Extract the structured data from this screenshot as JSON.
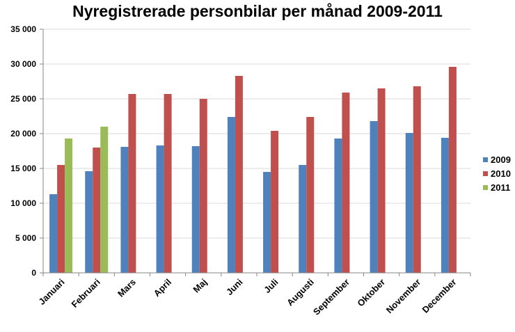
{
  "chart_data": {
    "type": "bar",
    "title": "Nyregistrerade personbilar per månad 2009-2011",
    "xlabel": "",
    "ylabel": "",
    "ylim": [
      0,
      35000
    ],
    "yticks": [
      0,
      5000,
      10000,
      15000,
      20000,
      25000,
      30000,
      35000
    ],
    "ytick_labels": [
      "0",
      "5 000",
      "10 000",
      "15 000",
      "20 000",
      "25 000",
      "30 000",
      "35 000"
    ],
    "grid": true,
    "legend": "right",
    "categories": [
      "Januari",
      "Februari",
      "Mars",
      "April",
      "Maj",
      "Juni",
      "Juli",
      "Augusti",
      "September",
      "Oktober",
      "November",
      "December"
    ],
    "series": [
      {
        "name": "2009",
        "color": "#4f81bd",
        "values": [
          11300,
          14600,
          18100,
          18300,
          18200,
          22400,
          14500,
          15500,
          19300,
          21800,
          20100,
          19400
        ]
      },
      {
        "name": "2010",
        "color": "#c0504d",
        "values": [
          15500,
          18000,
          25700,
          25700,
          25000,
          28300,
          20400,
          22400,
          25900,
          26500,
          26800,
          29600
        ]
      },
      {
        "name": "2011",
        "color": "#9bbb59",
        "values": [
          19300,
          21000,
          null,
          null,
          null,
          null,
          null,
          null,
          null,
          null,
          null,
          null
        ]
      }
    ]
  }
}
